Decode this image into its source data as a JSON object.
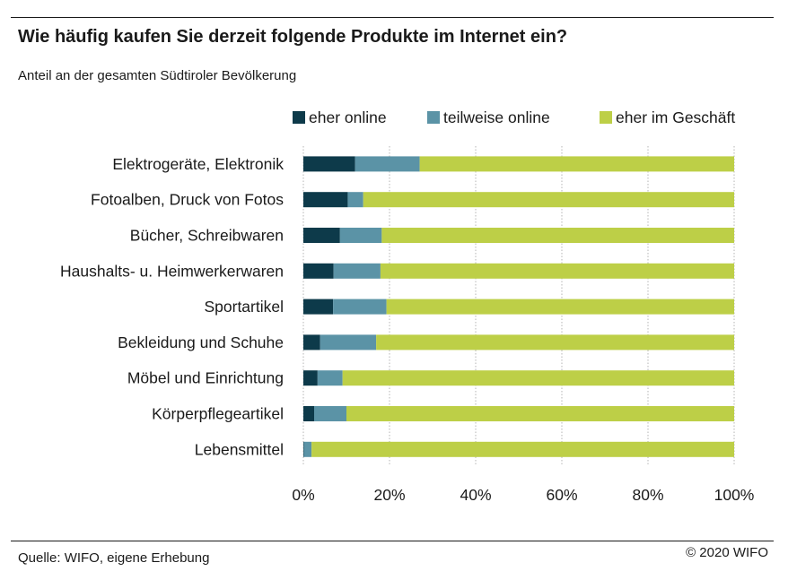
{
  "header": {
    "title": "Wie häufig kaufen Sie derzeit folgende Produkte im Internet ein?",
    "subtitle": "Anteil an der gesamten Südtiroler Bevölkerung"
  },
  "footer": {
    "source": "Quelle: WIFO, eigene Erhebung",
    "copyright": "© 2020 WIFO"
  },
  "chart_data": {
    "type": "bar",
    "orientation": "horizontal",
    "stacked": true,
    "legend_position": "top",
    "grid": "vertical",
    "xlim": [
      0,
      100
    ],
    "x_ticks": [
      0,
      20,
      40,
      60,
      80,
      100
    ],
    "x_tick_labels": [
      "0%",
      "20%",
      "40%",
      "60%",
      "80%",
      "100%"
    ],
    "categories": [
      "Elektrogeräte, Elektronik",
      "Fotoalben, Druck von Fotos",
      "Bücher, Schreibwaren",
      "Haushalts- u. Heimwerkerwaren",
      "Sportartikel",
      "Bekleidung und Schuhe",
      "Möbel und Einrichtung",
      "Körperpflegeartikel",
      "Lebensmittel"
    ],
    "series": [
      {
        "name": "eher online",
        "color": "#0d3a4a",
        "values": [
          12.0,
          10.3,
          8.5,
          7.0,
          6.9,
          3.9,
          3.3,
          2.5,
          0.1
        ]
      },
      {
        "name": "teilweise online",
        "color": "#5b93a6",
        "values": [
          15.0,
          3.6,
          9.7,
          10.9,
          12.4,
          13.0,
          5.8,
          7.5,
          1.8
        ]
      },
      {
        "name": "eher im Geschäft",
        "color": "#bdcf47",
        "values": [
          73.0,
          86.1,
          81.8,
          82.1,
          80.7,
          83.1,
          90.9,
          90.0,
          98.1
        ]
      }
    ]
  }
}
